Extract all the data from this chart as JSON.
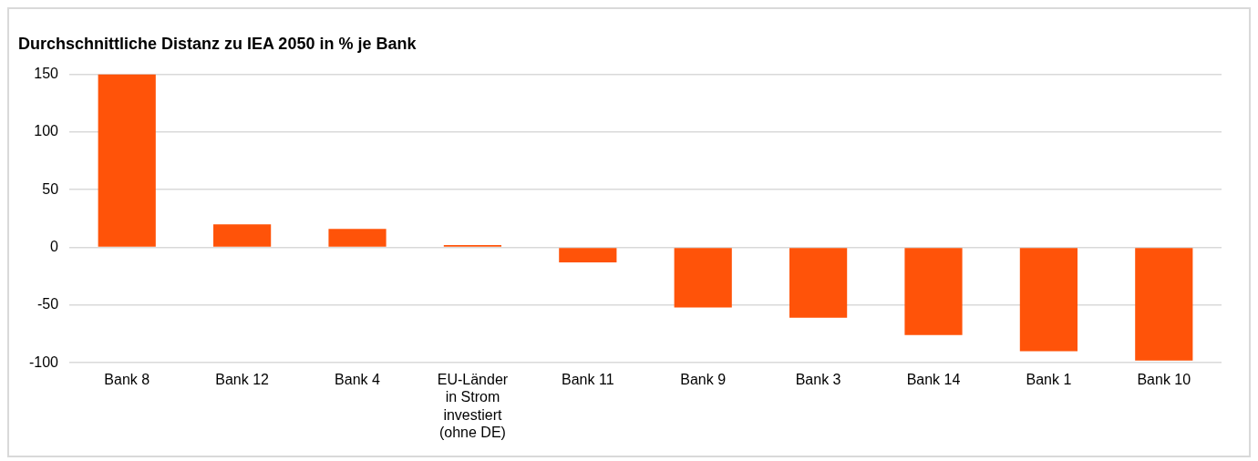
{
  "chart_data": {
    "type": "bar",
    "title": "Durchschnittliche Distanz zu IEA 2050 in % je Bank",
    "categories": [
      "Bank 8",
      "Bank 12",
      "Bank 4",
      "EU-Länder in Strom investiert (ohne DE)",
      "Bank 11",
      "Bank 9",
      "Bank 3",
      "Bank 14",
      "Bank 1",
      "Bank 10"
    ],
    "values": [
      150,
      20,
      16,
      2,
      -13,
      -52,
      -61,
      -76,
      -90,
      -98
    ],
    "color": "#ff5309",
    "ylim": [
      -100,
      150
    ],
    "yticks": [
      -100,
      -50,
      0,
      50,
      100,
      150
    ],
    "grid": "y",
    "legend": false
  }
}
